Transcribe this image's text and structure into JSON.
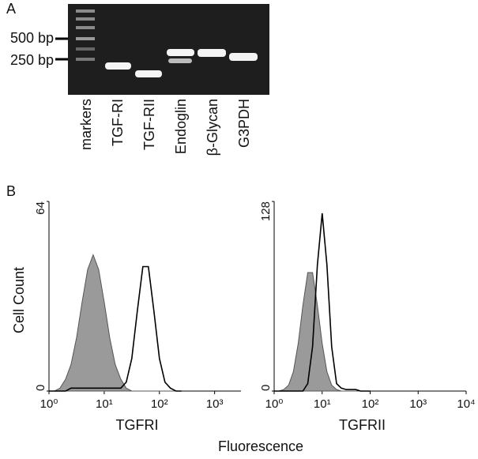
{
  "panel_a": {
    "label": "A",
    "size_markers": [
      "500 bp",
      "250 bp"
    ],
    "lanes": [
      "markers",
      "TGF-RI",
      "TGF-RII",
      "Endoglin",
      "β-Glycan",
      "G3PDH"
    ]
  },
  "panel_b": {
    "label": "B",
    "x_axis_label": "Fluorescence"
  },
  "chart_data": [
    {
      "type": "line",
      "xlabel": "TGFRI",
      "ylabel": "Cell Count",
      "log_x": true,
      "x": [
        1,
        1.26,
        1.58,
        2,
        2.51,
        3.16,
        3.98,
        5.01,
        6.31,
        7.94,
        10,
        12.6,
        15.8,
        20,
        25.1,
        31.6,
        39.8,
        50.1,
        63.1,
        79.4,
        100,
        126,
        158,
        200,
        251
      ],
      "series": [
        {
          "color": "#9a9a9a",
          "filled": true,
          "values": [
            0,
            0,
            1,
            4,
            9,
            18,
            30,
            41,
            46,
            41,
            30,
            18,
            9,
            4,
            1,
            0,
            0,
            0,
            0,
            0,
            0,
            0,
            0,
            0,
            0
          ]
        },
        {
          "color": "#000000",
          "filled": false,
          "values": [
            0,
            0,
            0,
            0,
            1,
            1,
            1,
            1,
            1,
            1,
            1,
            1,
            1,
            1,
            3,
            11,
            27,
            42,
            42,
            27,
            11,
            3,
            1,
            0,
            0
          ]
        }
      ],
      "xlim": [
        1,
        3000
      ],
      "ylim": [
        0,
        64
      ],
      "xticks": [
        {
          "value": 1,
          "label": "10⁰"
        },
        {
          "value": 10,
          "label": "10¹"
        },
        {
          "value": 100,
          "label": "10²"
        },
        {
          "value": 1000,
          "label": "10³"
        }
      ],
      "yticks": [
        0,
        64
      ]
    },
    {
      "type": "line",
      "xlabel": "TGFRII",
      "log_x": true,
      "x": [
        1,
        1.26,
        1.58,
        2,
        2.51,
        3.16,
        3.98,
        5.01,
        6.31,
        7.94,
        10,
        12.6,
        15.8,
        20,
        25.1,
        31.6,
        39.8,
        50.1,
        63.1,
        79.4,
        100
      ],
      "series": [
        {
          "color": "#9a9a9a",
          "filled": true,
          "values": [
            0,
            0,
            1,
            4,
            13,
            32,
            58,
            80,
            80,
            58,
            32,
            13,
            4,
            1,
            0,
            0,
            0,
            0,
            0,
            0,
            0
          ]
        },
        {
          "color": "#000000",
          "filled": false,
          "values": [
            0,
            0,
            0,
            0,
            0,
            0,
            0,
            5,
            30,
            85,
            120,
            85,
            30,
            5,
            2,
            1,
            1,
            1,
            0,
            0,
            0
          ]
        }
      ],
      "xlim": [
        1,
        10000
      ],
      "ylim": [
        0,
        128
      ],
      "xticks": [
        {
          "value": 1,
          "label": "10⁰"
        },
        {
          "value": 10,
          "label": "10¹"
        },
        {
          "value": 100,
          "label": "10²"
        },
        {
          "value": 1000,
          "label": "10³"
        },
        {
          "value": 10000,
          "label": "10⁴"
        }
      ],
      "yticks": [
        0,
        128
      ]
    }
  ]
}
